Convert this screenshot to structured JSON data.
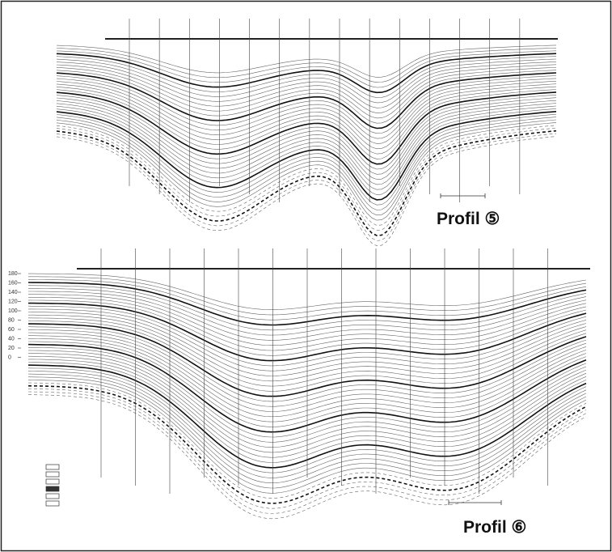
{
  "profiles": [
    {
      "title": "Profil ⑤"
    },
    {
      "title": "Profil ⑥",
      "scale": [
        "180",
        "160",
        "140",
        "120",
        "100",
        "80",
        "60",
        "40",
        "20",
        "0"
      ]
    }
  ]
}
